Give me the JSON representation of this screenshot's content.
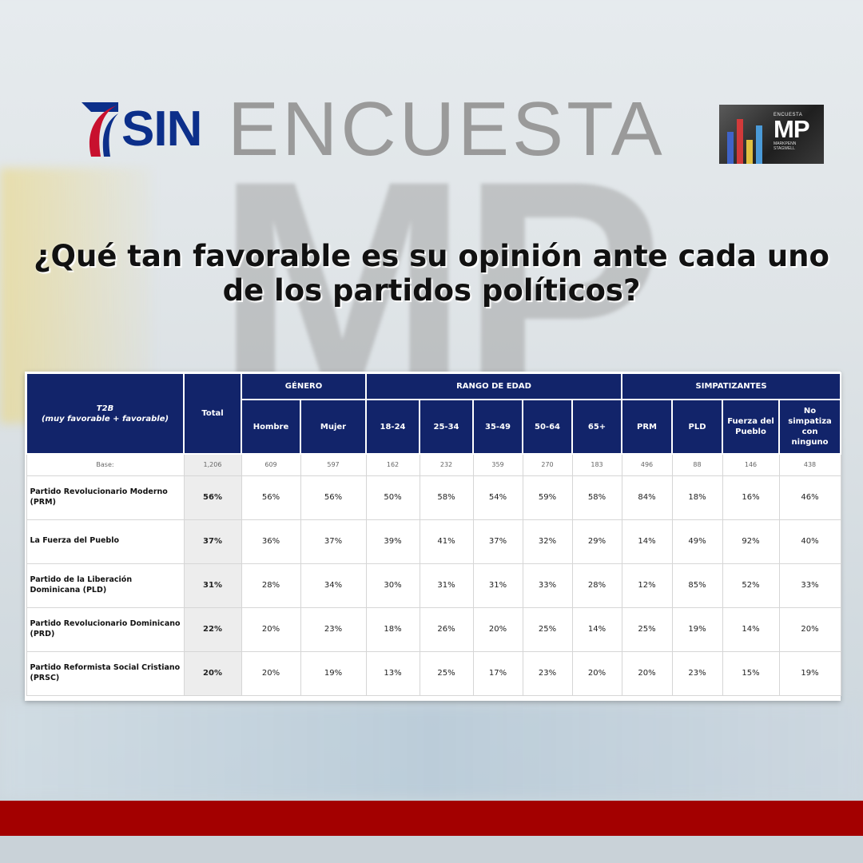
{
  "background_watermark": "MP",
  "header": {
    "sin_logo_text": "SIN",
    "encuesta_label": "ENCUESTA",
    "mp_logo": {
      "small_label": "ENCUESTA",
      "letters": "MP",
      "subtitle_line1": "MARKPENN",
      "subtitle_line2": "STAGWELL"
    }
  },
  "question": "¿Qué tan favorable es su opinión ante cada uno de los partidos políticos?",
  "colors": {
    "header_navy": "#12246a",
    "sin_blue": "#0c2f8a",
    "sin_red": "#c8102e",
    "band_red": "#a30000",
    "encuesta_gray": "#9a9a9a"
  },
  "table": {
    "t2b_title": "T2B",
    "t2b_subtitle": "(muy favorable + favorable)",
    "total_header": "Total",
    "groups": {
      "genero": "GÉNERO",
      "edad": "RANGO DE EDAD",
      "simpatizantes": "SIMPATIZANTES"
    },
    "columns": [
      "Hombre",
      "Mujer",
      "18-24",
      "25-34",
      "35-49",
      "50-64",
      "65+",
      "PRM",
      "PLD",
      "Fuerza del Pueblo",
      "No simpatiza con ninguno"
    ],
    "base": {
      "label": "Base:",
      "total": "1,206",
      "values": [
        "609",
        "597",
        "162",
        "232",
        "359",
        "270",
        "183",
        "496",
        "88",
        "146",
        "438"
      ]
    },
    "rows": [
      {
        "label": "Partido Revolucionario Moderno (PRM)",
        "total": "56%",
        "values": [
          "56%",
          "56%",
          "50%",
          "58%",
          "54%",
          "59%",
          "58%",
          "84%",
          "18%",
          "16%",
          "46%"
        ]
      },
      {
        "label": "La Fuerza del Pueblo",
        "total": "37%",
        "values": [
          "36%",
          "37%",
          "39%",
          "41%",
          "37%",
          "32%",
          "29%",
          "14%",
          "49%",
          "92%",
          "40%"
        ]
      },
      {
        "label": "Partido de la Liberación Dominicana (PLD)",
        "total": "31%",
        "values": [
          "28%",
          "34%",
          "30%",
          "31%",
          "31%",
          "33%",
          "28%",
          "12%",
          "85%",
          "52%",
          "33%"
        ]
      },
      {
        "label": "Partido Revolucionario Dominicano (PRD)",
        "total": "22%",
        "values": [
          "20%",
          "23%",
          "18%",
          "26%",
          "20%",
          "25%",
          "14%",
          "25%",
          "19%",
          "14%",
          "20%"
        ]
      },
      {
        "label": "Partido Reformista Social Cristiano (PRSC)",
        "total": "20%",
        "values": [
          "20%",
          "19%",
          "13%",
          "25%",
          "17%",
          "23%",
          "20%",
          "20%",
          "23%",
          "15%",
          "19%"
        ]
      }
    ]
  },
  "chart_data": {
    "type": "table",
    "title": "¿Qué tan favorable es su opinión ante cada uno de los partidos políticos?",
    "row_header": "T2B (muy favorable + favorable)",
    "column_groups": [
      {
        "name": "GÉNERO",
        "columns": [
          "Hombre",
          "Mujer"
        ]
      },
      {
        "name": "RANGO DE EDAD",
        "columns": [
          "18-24",
          "25-34",
          "35-49",
          "50-64",
          "65+"
        ]
      },
      {
        "name": "SIMPATIZANTES",
        "columns": [
          "PRM",
          "PLD",
          "Fuerza del Pueblo",
          "No simpatiza con ninguno"
        ]
      }
    ],
    "columns": [
      "Total",
      "Hombre",
      "Mujer",
      "18-24",
      "25-34",
      "35-49",
      "50-64",
      "65+",
      "PRM",
      "PLD",
      "Fuerza del Pueblo",
      "No simpatiza con ninguno"
    ],
    "base": [
      1206,
      609,
      597,
      162,
      232,
      359,
      270,
      183,
      496,
      88,
      146,
      438
    ],
    "series": [
      {
        "name": "Partido Revolucionario Moderno (PRM)",
        "values": [
          56,
          56,
          56,
          50,
          58,
          54,
          59,
          58,
          84,
          18,
          16,
          46
        ]
      },
      {
        "name": "La Fuerza del Pueblo",
        "values": [
          37,
          36,
          37,
          39,
          41,
          37,
          32,
          29,
          14,
          49,
          92,
          40
        ]
      },
      {
        "name": "Partido de la Liberación Dominicana (PLD)",
        "values": [
          31,
          28,
          34,
          30,
          31,
          31,
          33,
          28,
          12,
          85,
          52,
          33
        ]
      },
      {
        "name": "Partido Revolucionario Dominicano (PRD)",
        "values": [
          22,
          20,
          23,
          18,
          26,
          20,
          25,
          14,
          25,
          19,
          14,
          20
        ]
      },
      {
        "name": "Partido Reformista Social Cristiano (PRSC)",
        "values": [
          20,
          20,
          19,
          13,
          25,
          17,
          23,
          20,
          20,
          23,
          15,
          19
        ]
      }
    ],
    "unit": "%"
  }
}
